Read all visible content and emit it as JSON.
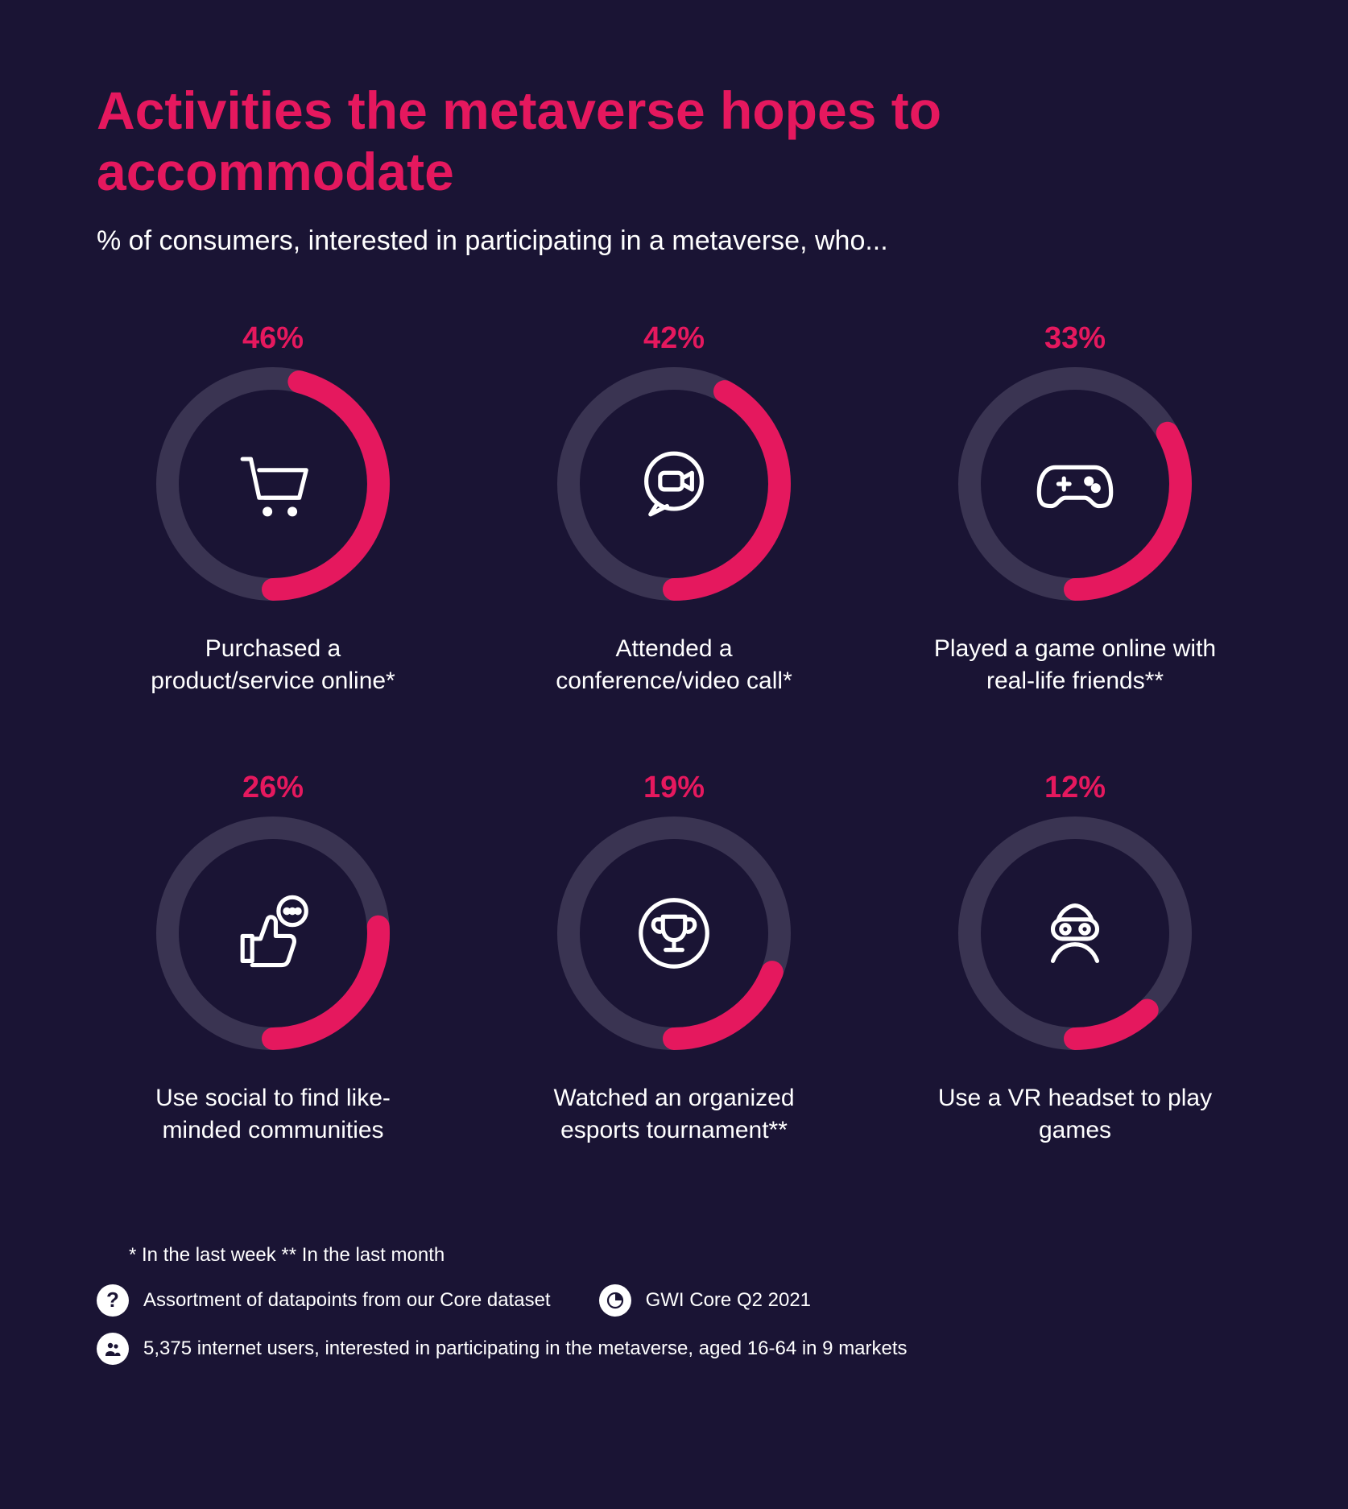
{
  "colors": {
    "background": "#1A1434",
    "accent": "#E5185E",
    "ring_track": "#3A3452",
    "text": "#FFFFFF",
    "icon_stroke": "#FFFFFF"
  },
  "title": "Activities the metaverse hopes to accommodate",
  "subtitle": "% of consumers, interested in participating in a metaverse, who...",
  "chart": {
    "type": "donut-grid",
    "ring_thickness": 28,
    "ring_diameter": 290,
    "start_angle_deg": 0,
    "items": [
      {
        "percent": 46,
        "percent_label": "46%",
        "label": "Purchased a product/service online*",
        "icon": "cart"
      },
      {
        "percent": 42,
        "percent_label": "42%",
        "label": "Attended a conference/video call*",
        "icon": "videocall"
      },
      {
        "percent": 33,
        "percent_label": "33%",
        "label": "Played a game online with real-life friends**",
        "icon": "gamepad"
      },
      {
        "percent": 26,
        "percent_label": "26%",
        "label": "Use social to find like-minded communities",
        "icon": "thumbschat"
      },
      {
        "percent": 19,
        "percent_label": "19%",
        "label": "Watched an organized esports tournament**",
        "icon": "trophy"
      },
      {
        "percent": 12,
        "percent_label": "12%",
        "label": "Use a VR headset to play games",
        "icon": "vr"
      }
    ]
  },
  "footnotes": {
    "timeframe": "* In the last week   ** In the last month",
    "question": "Assortment of datapoints from our Core dataset",
    "source": "GWI Core Q2 2021",
    "base": "5,375 internet users, interested in participating in the metaverse, aged 16-64 in 9 markets"
  }
}
